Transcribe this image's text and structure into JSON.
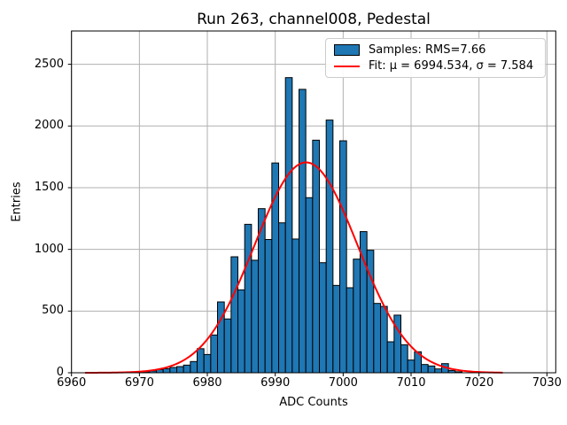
{
  "figure": {
    "title": "Run 263, channel008, Pedestal",
    "xlabel": "ADC Counts",
    "ylabel": "Entries"
  },
  "legend": {
    "position": "upper right",
    "items": [
      {
        "label": "Samples: RMS=7.66",
        "marker": "patch"
      },
      {
        "label": "Fit: μ = 6994.534, σ = 7.584",
        "marker": "line"
      }
    ]
  },
  "colors": {
    "bar_fill": "#1f77b4",
    "bar_edge": "#000000",
    "fit_line": "#ff0000",
    "grid": "#b0b0b0",
    "axes": "#000000",
    "legend_border": "#cccccc",
    "background": "#ffffff"
  },
  "chart_data": {
    "type": "bar",
    "subtype": "histogram",
    "title": "Run 263, channel008, Pedestal",
    "xlabel": "ADC Counts",
    "ylabel": "Entries",
    "grid": true,
    "legend_position": "upper right",
    "xlim": [
      6960,
      7031.3
    ],
    "ylim": [
      0,
      2770
    ],
    "x_ticks": [
      6960,
      6970,
      6980,
      6990,
      7000,
      7010,
      7020,
      7030
    ],
    "y_ticks": [
      0,
      500,
      1000,
      1500,
      2000,
      2500
    ],
    "bin_width": 1,
    "bin_centers": [
      6971,
      6972,
      6973,
      6974,
      6975,
      6976,
      6977,
      6978,
      6979,
      6980,
      6981,
      6982,
      6983,
      6984,
      6985,
      6986,
      6987,
      6988,
      6989,
      6990,
      6991,
      6992,
      6993,
      6994,
      6995,
      6996,
      6997,
      6998,
      6999,
      7000,
      7001,
      7002,
      7003,
      7004,
      7005,
      7006,
      7007,
      7008,
      7009,
      7010,
      7011,
      7012,
      7013,
      7014,
      7015,
      7016,
      7017
    ],
    "values": [
      8,
      15,
      25,
      33,
      43,
      50,
      62,
      91,
      195,
      148,
      306,
      574,
      436,
      940,
      672,
      1203,
      912,
      1330,
      1080,
      1700,
      1215,
      2392,
      1084,
      2297,
      1419,
      1885,
      892,
      2048,
      708,
      1880,
      689,
      921,
      1144,
      993,
      562,
      538,
      251,
      467,
      227,
      103,
      170,
      67,
      55,
      31,
      74,
      19,
      8
    ],
    "series_name": "Samples: RMS=7.66",
    "fit": {
      "name": "Fit: μ = 6994.534, σ = 7.584",
      "shape": "gaussian",
      "mu": 6994.534,
      "sigma": 7.584,
      "amplitude": 1705,
      "x_range": [
        6962,
        7023.5
      ]
    }
  }
}
